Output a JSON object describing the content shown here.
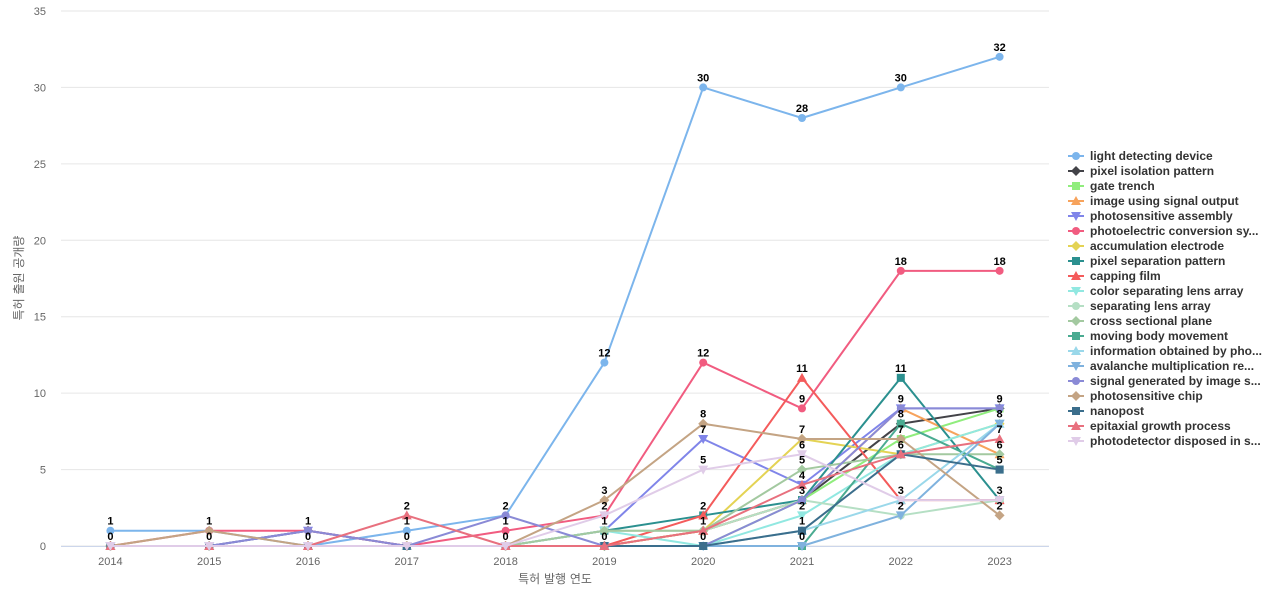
{
  "chart_data": {
    "type": "line",
    "title": "",
    "xlabel": "특허 발행 연도",
    "ylabel": "특허 출원 공개량",
    "x": [
      2014,
      2015,
      2016,
      2017,
      2018,
      2019,
      2020,
      2021,
      2022,
      2023
    ],
    "ylim": [
      0,
      35
    ],
    "yticks": [
      0,
      5,
      10,
      15,
      20,
      25,
      30,
      35
    ],
    "grid": true,
    "legend": "right",
    "series": [
      {
        "name": "light detecting device",
        "color": "#7cb5ec",
        "marker": "circle",
        "values": [
          1,
          1,
          0,
          1,
          2,
          12,
          30,
          28,
          30,
          32
        ]
      },
      {
        "name": "pixel isolation pattern",
        "color": "#434348",
        "marker": "diamond",
        "values": [
          0,
          0,
          1,
          0,
          0,
          0,
          1,
          3,
          8,
          9
        ]
      },
      {
        "name": "gate trench",
        "color": "#90ed7d",
        "marker": "square",
        "values": [
          0,
          0,
          0,
          0,
          0,
          0,
          0,
          3,
          7,
          9
        ]
      },
      {
        "name": "image using signal output",
        "color": "#f7a35c",
        "marker": "triangle",
        "values": [
          0,
          0,
          0,
          0,
          0,
          0,
          1,
          3,
          9,
          6
        ]
      },
      {
        "name": "photosensitive assembly",
        "color": "#8085e9",
        "marker": "triangle-down",
        "values": [
          0,
          0,
          1,
          0,
          0,
          1,
          7,
          4,
          9,
          9
        ]
      },
      {
        "name": "photoelectric conversion sy...",
        "color": "#f15c80",
        "marker": "circle",
        "values": [
          0,
          1,
          1,
          0,
          1,
          2,
          12,
          9,
          18,
          18
        ]
      },
      {
        "name": "accumulation electrode",
        "color": "#e4d354",
        "marker": "diamond",
        "values": [
          0,
          0,
          0,
          0,
          0,
          0,
          1,
          7,
          6,
          8
        ]
      },
      {
        "name": "pixel separation pattern",
        "color": "#2b908f",
        "marker": "square",
        "values": [
          0,
          0,
          0,
          0,
          0,
          1,
          2,
          3,
          11,
          3
        ]
      },
      {
        "name": "capping film",
        "color": "#f45b5b",
        "marker": "triangle",
        "values": [
          0,
          0,
          0,
          0,
          0,
          0,
          2,
          11,
          3,
          3
        ]
      },
      {
        "name": "color separating lens array",
        "color": "#91e8e1",
        "marker": "triangle-down",
        "values": [
          0,
          0,
          0,
          0,
          0,
          1,
          0,
          2,
          6,
          8
        ]
      },
      {
        "name": "separating lens array",
        "color": "#b5dfc4",
        "marker": "circle",
        "values": [
          0,
          0,
          0,
          0,
          0,
          1,
          1,
          3,
          2,
          3
        ]
      },
      {
        "name": "cross sectional plane",
        "color": "#a3c9a0",
        "marker": "diamond",
        "values": [
          0,
          0,
          0,
          0,
          0,
          1,
          1,
          5,
          6,
          6
        ]
      },
      {
        "name": "moving body movement",
        "color": "#4aab91",
        "marker": "square",
        "values": [
          0,
          0,
          0,
          0,
          0,
          0,
          0,
          0,
          8,
          5
        ]
      },
      {
        "name": "information obtained by pho...",
        "color": "#9ad8ea",
        "marker": "triangle",
        "values": [
          0,
          0,
          0,
          0,
          0,
          0,
          0,
          1,
          3,
          8
        ]
      },
      {
        "name": "avalanche multiplication re...",
        "color": "#7fb2de",
        "marker": "triangle-down",
        "values": [
          0,
          0,
          0,
          0,
          0,
          0,
          0,
          0,
          2,
          8
        ]
      },
      {
        "name": "signal generated by image s...",
        "color": "#8a8ad6",
        "marker": "circle",
        "values": [
          0,
          0,
          1,
          0,
          2,
          0,
          0,
          3,
          9,
          9
        ]
      },
      {
        "name": "photosensitive chip",
        "color": "#c4a484",
        "marker": "diamond",
        "values": [
          0,
          1,
          0,
          0,
          0,
          3,
          8,
          7,
          7,
          2
        ]
      },
      {
        "name": "nanopost",
        "color": "#3b6e8c",
        "marker": "square",
        "values": [
          0,
          0,
          0,
          0,
          0,
          0,
          0,
          1,
          6,
          5
        ]
      },
      {
        "name": "epitaxial growth process",
        "color": "#e8707e",
        "marker": "triangle",
        "values": [
          0,
          0,
          0,
          2,
          0,
          0,
          1,
          4,
          6,
          7
        ]
      },
      {
        "name": "photodetector disposed in s...",
        "color": "#e0cce8",
        "marker": "triangle-down",
        "values": [
          0,
          0,
          0,
          0,
          0,
          2,
          5,
          6,
          3,
          3
        ]
      }
    ]
  }
}
